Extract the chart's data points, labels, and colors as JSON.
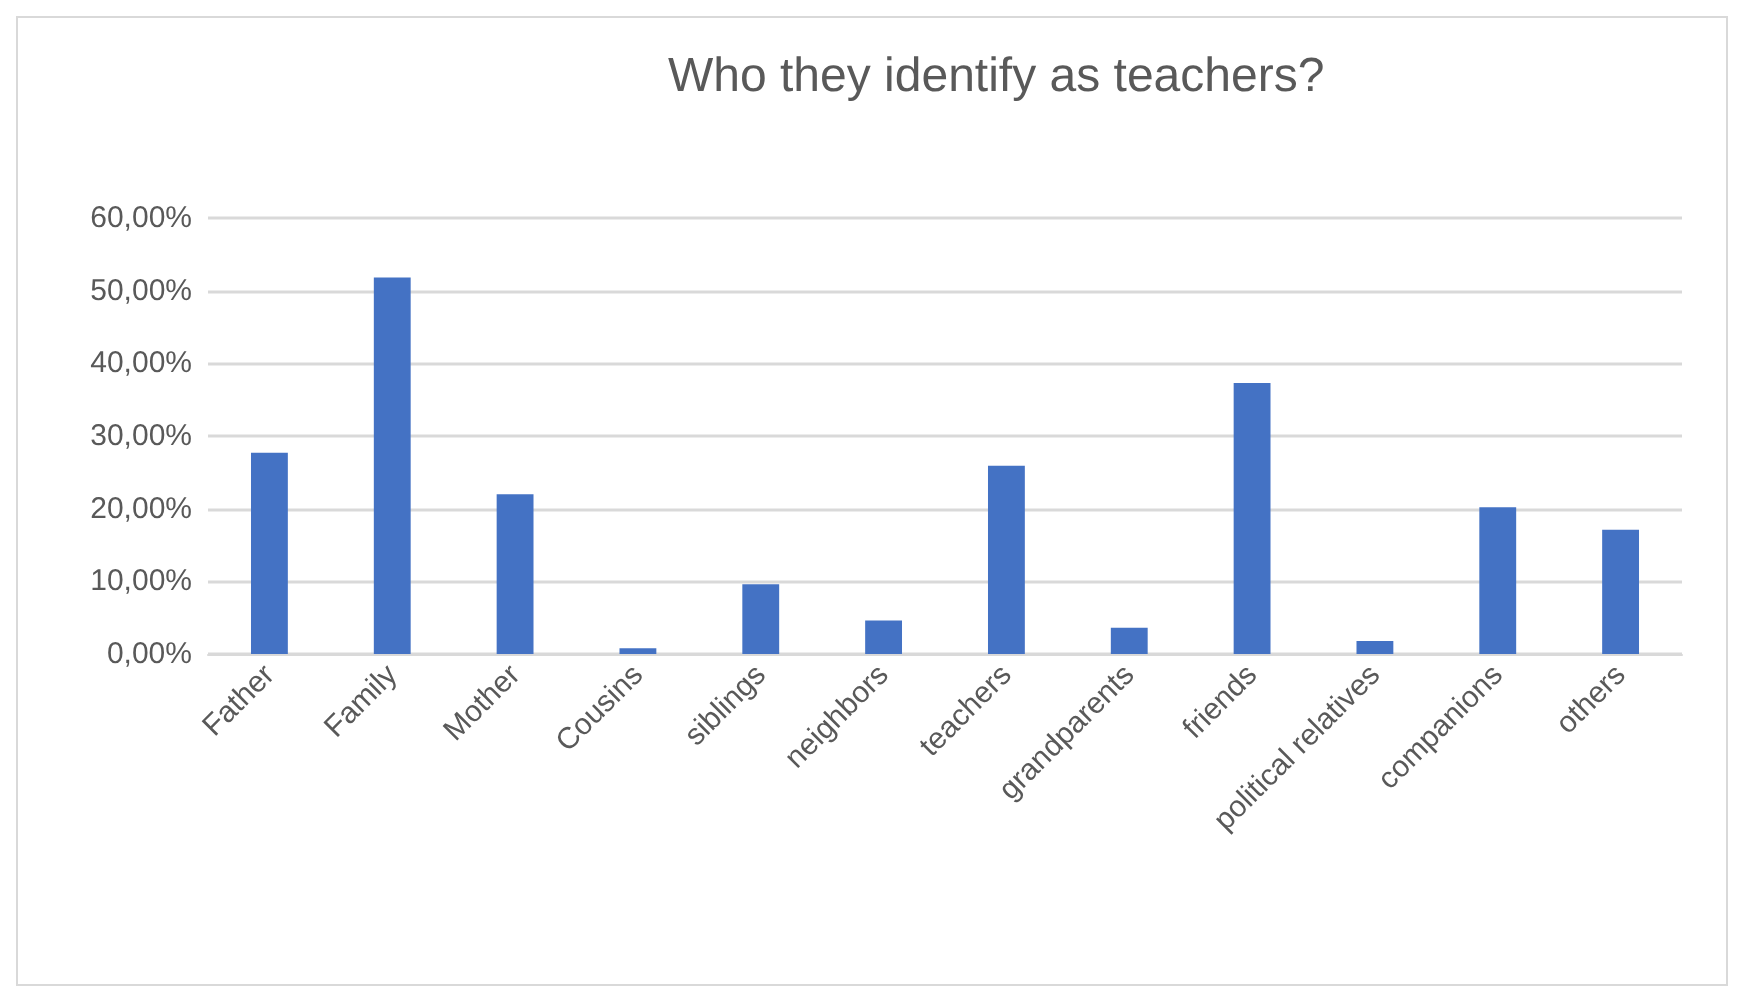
{
  "chart_data": {
    "type": "bar",
    "title": "Who they identify as teachers?",
    "categories": [
      "Father",
      "Family",
      "Mother",
      "Cousins",
      "siblings",
      "neighbors",
      "teachers",
      "grandparents",
      "friends",
      "political relatives",
      "companions",
      "others"
    ],
    "values": [
      27.7,
      51.8,
      22.0,
      0.8,
      9.6,
      4.6,
      25.9,
      3.6,
      37.3,
      1.8,
      20.2,
      17.1
    ],
    "color": "#4472c4",
    "ylim": [
      0,
      60
    ],
    "yticks": [
      {
        "value": 0,
        "label": "0,00%"
      },
      {
        "value": 10,
        "label": "10,00%"
      },
      {
        "value": 20,
        "label": "20,00%"
      },
      {
        "value": 30,
        "label": "30,00%"
      },
      {
        "value": 40,
        "label": "40,00%"
      },
      {
        "value": 50,
        "label": "50,00%"
      },
      {
        "value": 60,
        "label": "60,00%"
      }
    ],
    "grid": "y"
  }
}
